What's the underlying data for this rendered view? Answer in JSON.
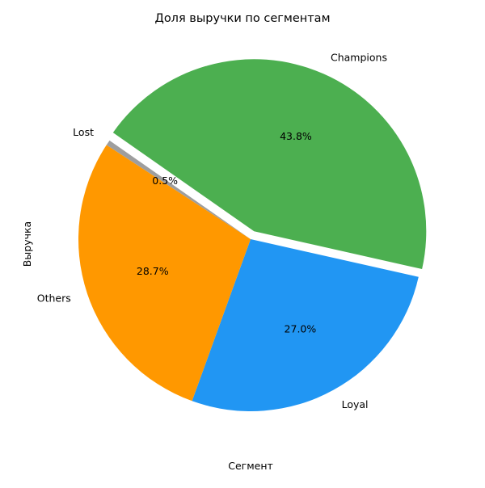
{
  "chart_data": {
    "type": "pie",
    "title": "Доля выручки по сегментам",
    "xlabel": "Сегмент",
    "ylabel": "Выручка",
    "slices": [
      {
        "label": "Champions",
        "pct_label": "43.8%",
        "value": 43.8,
        "color": "#4caf50",
        "explode": true
      },
      {
        "label": "Loyal",
        "pct_label": "27.0%",
        "value": 27.0,
        "color": "#2196f3",
        "explode": false
      },
      {
        "label": "Others",
        "pct_label": "28.7%",
        "value": 28.7,
        "color": "#ff9800",
        "explode": false
      },
      {
        "label": "Lost",
        "pct_label": "0.5%",
        "value": 0.5,
        "color": "#9e9e9e",
        "explode": false
      }
    ]
  }
}
